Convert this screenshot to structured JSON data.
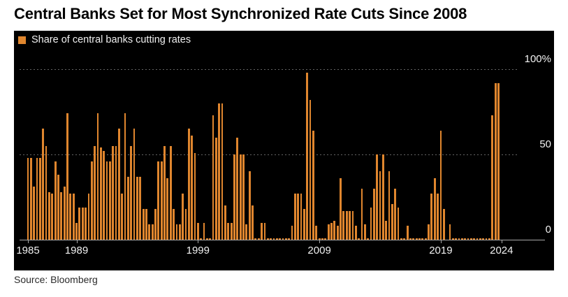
{
  "title": "Central Banks Set for Most Synchronized Rate Cuts Since 2008",
  "source": "Source: Bloomberg",
  "legend": {
    "label": "Share of central banks cutting rates"
  },
  "colors": {
    "bar": "#E0862E",
    "panel_background": "#000000",
    "page_background": "#FFFFFF",
    "gridline": "#646464",
    "axis_line": "#A8A8A8",
    "axis_text": "#F2F2F2",
    "title_text": "#000000",
    "source_text": "#2B2B2B"
  },
  "chart_data": {
    "type": "bar",
    "title": "Central Banks Set for Most Synchronized Rate Cuts Since 2008",
    "legend": "Share of central banks cutting rates",
    "ylabel": "Share of central banks cutting rates (%)",
    "xlabel": "",
    "ylim": [
      0,
      100
    ],
    "grid": "dashed horizontal gridlines at 50 and 100",
    "legend_position": "top-left",
    "x_start_year": 1985,
    "frequency": "quarterly",
    "x_tick_labels": [
      "1985",
      "1989",
      "1999",
      "2009",
      "2019",
      "2024"
    ],
    "x_tick_indices": [
      0,
      16,
      56,
      96,
      136,
      156
    ],
    "y_ticks": [
      {
        "label": "100%",
        "value": 100
      },
      {
        "label": "50",
        "value": 50
      },
      {
        "label": "0",
        "value": 0
      }
    ],
    "gridline_values": [
      100,
      50
    ],
    "values": [
      48,
      48,
      31,
      48,
      48,
      65,
      55,
      28,
      27,
      46,
      38,
      28,
      31,
      74,
      27,
      27,
      10,
      19,
      19,
      19,
      27,
      46,
      55,
      74,
      54,
      52,
      46,
      46,
      55,
      55,
      65,
      27,
      74,
      37,
      55,
      65,
      37,
      37,
      18,
      18,
      9,
      9,
      18,
      46,
      46,
      55,
      36,
      55,
      18,
      9,
      9,
      27,
      18,
      65,
      61,
      51,
      10,
      1,
      10,
      1,
      1,
      73,
      60,
      80,
      80,
      20,
      10,
      10,
      50,
      60,
      50,
      50,
      9,
      40,
      20,
      1,
      1,
      10,
      10,
      1,
      1,
      1,
      1,
      1,
      1,
      1,
      1,
      8,
      27,
      27,
      27,
      18,
      98,
      82,
      64,
      8,
      1,
      1,
      1,
      9,
      10,
      11,
      8,
      36,
      17,
      17,
      17,
      17,
      8,
      1,
      30,
      9,
      1,
      19,
      30,
      50,
      40,
      50,
      11,
      40,
      21,
      30,
      19,
      1,
      1,
      8,
      1,
      1,
      1,
      1,
      1,
      1,
      9,
      27,
      36,
      27,
      64,
      18,
      0,
      9,
      1,
      1,
      1,
      1,
      1,
      1,
      1,
      1,
      1,
      1,
      1,
      1,
      1,
      73,
      92,
      92,
      0,
      0,
      0,
      0,
      0,
      0,
      0,
      0,
      0,
      0,
      0,
      0
    ]
  }
}
